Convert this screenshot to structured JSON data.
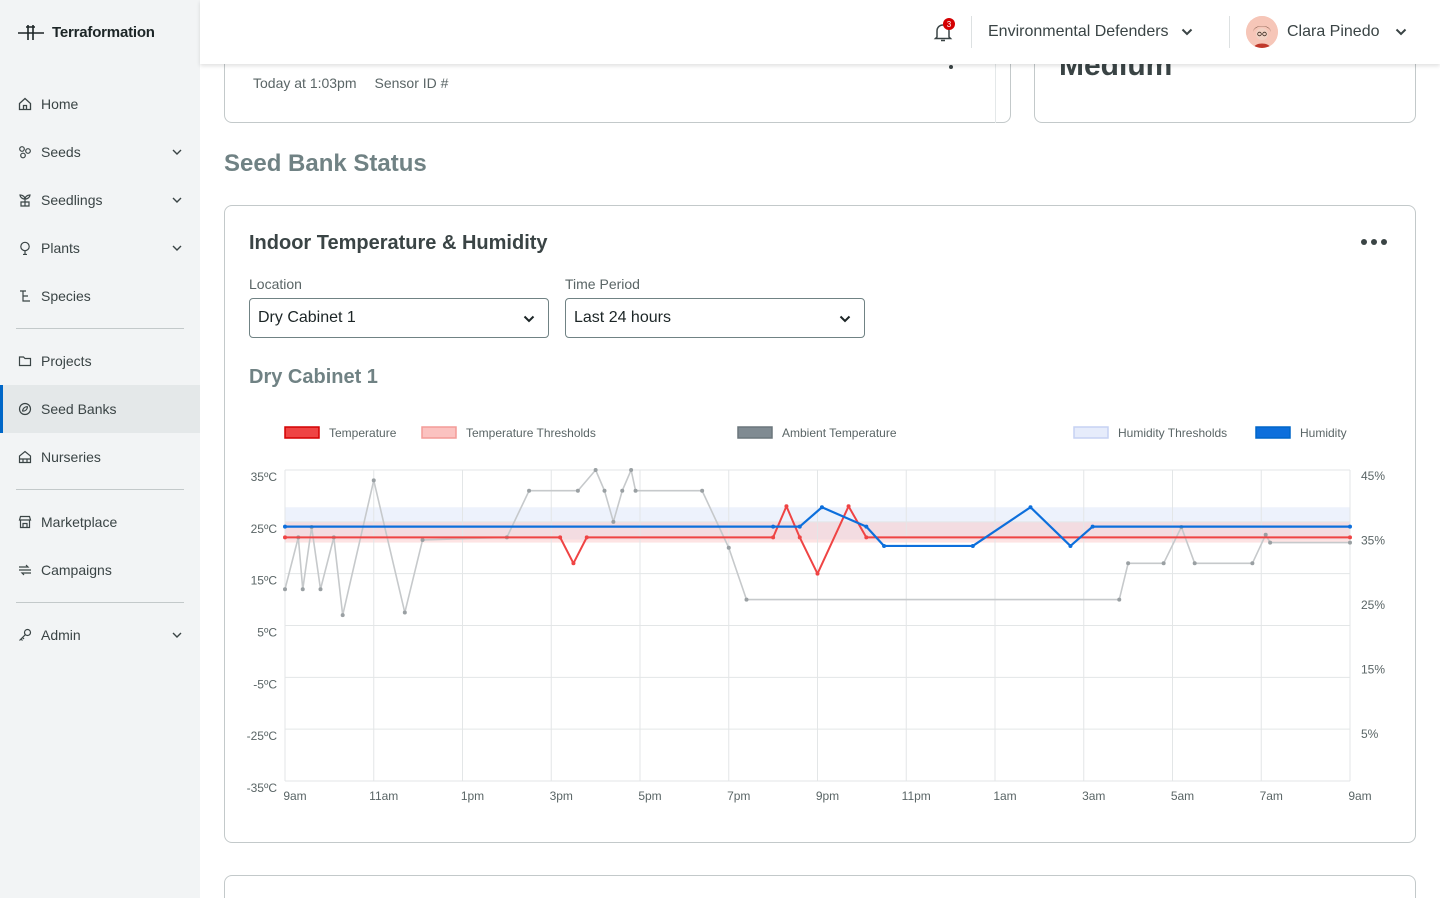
{
  "app": {
    "name": "Terraformation"
  },
  "sidebar": {
    "items": [
      {
        "label": "Home",
        "icon": "home-icon",
        "expandable": false
      },
      {
        "label": "Seeds",
        "icon": "seeds-icon",
        "expandable": true
      },
      {
        "label": "Seedlings",
        "icon": "seedlings-icon",
        "expandable": true
      },
      {
        "label": "Plants",
        "icon": "plants-icon",
        "expandable": true
      },
      {
        "label": "Species",
        "icon": "species-icon",
        "expandable": false
      },
      {
        "label": "Projects",
        "icon": "folder-icon",
        "expandable": false
      },
      {
        "label": "Seed Banks",
        "icon": "seed-bank-icon",
        "expandable": false,
        "active": true
      },
      {
        "label": "Nurseries",
        "icon": "nursery-icon",
        "expandable": false
      },
      {
        "label": "Marketplace",
        "icon": "marketplace-icon",
        "expandable": false
      },
      {
        "label": "Campaigns",
        "icon": "campaigns-icon",
        "expandable": false
      },
      {
        "label": "Admin",
        "icon": "key-icon",
        "expandable": true
      }
    ]
  },
  "header": {
    "notifications_count": "3",
    "organization": "Environmental Defenders",
    "user_name": "Clara Pinedo"
  },
  "top_cards": {
    "timestamp": "Today at 1:03pm",
    "sensor_label": "Sensor ID #",
    "right_value": "Medium"
  },
  "section_title": "Seed Bank Status",
  "temp_card": {
    "title": "Indoor Temperature & Humidity",
    "location_label": "Location",
    "location_value": "Dry Cabinet 1",
    "period_label": "Time Period",
    "period_value": "Last 24 hours",
    "subtitle": "Dry Cabinet 1"
  },
  "colors": {
    "temperature": "#ef4444",
    "temperature_threshold": "#fbc2c0",
    "ambient": "#808b92",
    "humidity_threshold": "#e6ecfb",
    "humidity": "#0d6fdc",
    "accent": "#0067c8"
  },
  "chart_data": {
    "type": "line",
    "legend": [
      "Temperature",
      "Temperature Thresholds",
      "Ambient Temperature",
      "Humidity Thresholds",
      "Humidity"
    ],
    "x_ticks": [
      "9am",
      "11am",
      "1pm",
      "3pm",
      "5pm",
      "7pm",
      "9pm",
      "11pm",
      "1am",
      "3am",
      "5am",
      "7am",
      "9am"
    ],
    "y_left_ticks": [
      "35ºC",
      "25ºC",
      "15ºC",
      "5ºC",
      "-5ºC",
      "-25ºC",
      "-35ºC"
    ],
    "y_right_ticks": [
      "45%",
      "35%",
      "25%",
      "15%",
      "5%"
    ],
    "x_range_hours": [
      0,
      24
    ],
    "temperature_threshold_c": [
      21,
      25
    ],
    "humidity_threshold_pct": [
      35,
      40
    ],
    "series": [
      {
        "name": "Ambient Temperature",
        "points": [
          [
            0,
            12
          ],
          [
            0.3,
            22
          ],
          [
            0.4,
            12
          ],
          [
            0.6,
            24
          ],
          [
            0.8,
            12
          ],
          [
            1.1,
            22
          ],
          [
            1.3,
            7
          ],
          [
            2.0,
            33
          ],
          [
            2.7,
            7.5
          ],
          [
            3.1,
            21.5
          ],
          [
            5.0,
            22
          ],
          [
            5.5,
            31
          ],
          [
            6.6,
            31
          ],
          [
            7.0,
            35
          ],
          [
            7.2,
            31
          ],
          [
            7.4,
            25
          ],
          [
            7.6,
            31
          ],
          [
            7.8,
            35
          ],
          [
            7.9,
            31
          ],
          [
            9.4,
            31
          ],
          [
            10.0,
            20
          ],
          [
            10.4,
            10
          ],
          [
            18.8,
            10
          ],
          [
            19.0,
            17
          ],
          [
            19.8,
            17
          ],
          [
            20.2,
            24
          ],
          [
            20.5,
            17
          ],
          [
            21.8,
            17
          ],
          [
            22.1,
            22.5
          ],
          [
            22.2,
            21
          ],
          [
            24,
            21
          ]
        ]
      },
      {
        "name": "Temperature",
        "points": [
          [
            0,
            22
          ],
          [
            6.2,
            22
          ],
          [
            6.5,
            17
          ],
          [
            6.8,
            22
          ],
          [
            11.0,
            22
          ],
          [
            11.3,
            28
          ],
          [
            11.6,
            22
          ],
          [
            12.0,
            15
          ],
          [
            12.7,
            28
          ],
          [
            13.1,
            22
          ],
          [
            24,
            22
          ]
        ]
      },
      {
        "name": "Humidity",
        "points": [
          [
            0,
            37
          ],
          [
            11.0,
            37
          ],
          [
            11.6,
            37
          ],
          [
            12.1,
            40
          ],
          [
            13.1,
            37
          ],
          [
            13.5,
            34
          ],
          [
            15.5,
            34
          ],
          [
            16.8,
            40
          ],
          [
            17.7,
            34
          ],
          [
            18.2,
            37
          ],
          [
            24,
            37
          ]
        ]
      }
    ]
  }
}
